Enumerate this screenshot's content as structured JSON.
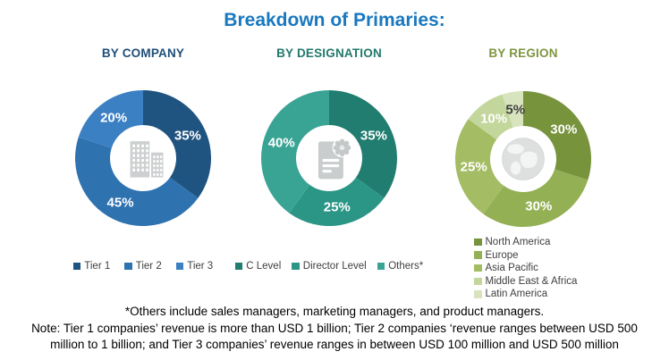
{
  "title": "Breakdown of Primaries:",
  "title_color": "#1878C0",
  "chart_data": [
    {
      "type": "donut",
      "title": "BY COMPANY",
      "title_color": "#1F4E79",
      "center_icon": "building-icon",
      "legend_position": "bottom-horizontal",
      "labels": [
        "Tier 1",
        "Tier 2",
        "Tier 3"
      ],
      "values": [
        35,
        45,
        20
      ],
      "colors": [
        "#1F5380",
        "#2E72B0",
        "#3C80C4"
      ],
      "pct_label_colors": [
        "#FFFFFF",
        "#FFFFFF",
        "#FFFFFF"
      ]
    },
    {
      "type": "donut",
      "title": "BY DESIGNATION",
      "title_color": "#21796C",
      "center_icon": "document-seal-icon",
      "legend_position": "bottom-horizontal",
      "labels": [
        "C Level",
        "Director Level",
        "Others*"
      ],
      "values": [
        35,
        25,
        40
      ],
      "colors": [
        "#207D70",
        "#2B9686",
        "#3AA494"
      ],
      "pct_label_colors": [
        "#FFFFFF",
        "#FFFFFF",
        "#FFFFFF"
      ]
    },
    {
      "type": "donut",
      "title": "BY REGION",
      "title_color": "#7E963F",
      "center_icon": "globe-icon",
      "legend_position": "bottom-left-vertical",
      "labels": [
        "North America",
        "Europe",
        "Asia Pacific",
        "Middle East & Africa",
        "Latin America"
      ],
      "values": [
        30,
        30,
        25,
        10,
        5
      ],
      "colors": [
        "#77933C",
        "#94B054",
        "#A4BC64",
        "#C3D69B",
        "#D7E4BD"
      ],
      "pct_label_colors": [
        "#FFFFFF",
        "#FFFFFF",
        "#FFFFFF",
        "#FFFFFF",
        "#3F3F3F"
      ]
    }
  ],
  "footnote": "*Others include sales managers, marketing managers, and product managers.",
  "note_lines": [
    "Note: Tier 1 companies’ revenue is more than USD 1 billion; Tier 2 companies ‘revenue ranges between USD 500",
    "million to 1 billion; and Tier 3 companies’ revenue ranges in between USD 100 million and USD 500 million"
  ]
}
